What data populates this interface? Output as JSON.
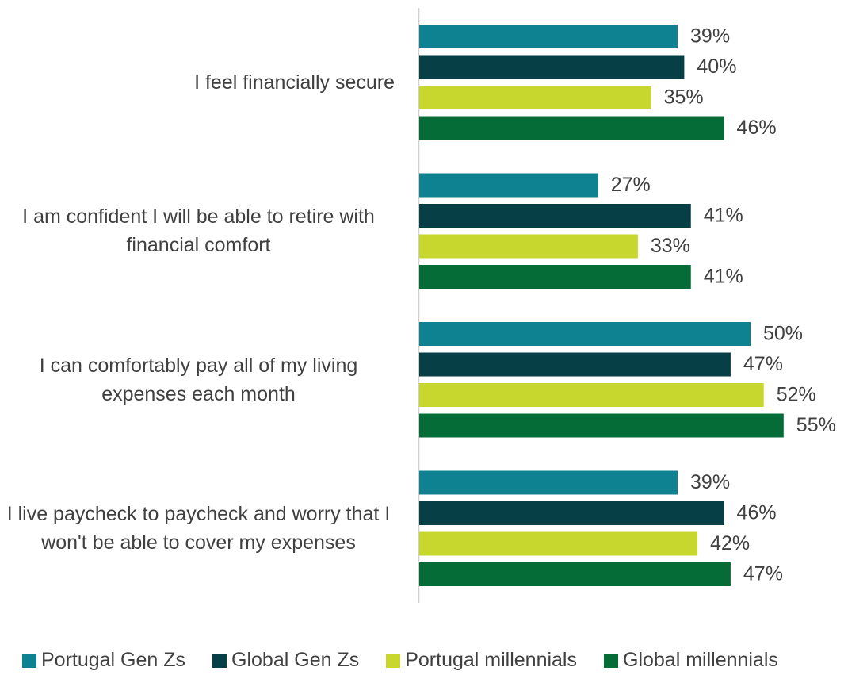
{
  "chart_data": {
    "type": "bar",
    "orientation": "horizontal",
    "categories": [
      "I feel financially secure",
      "I am confident I will be able to retire with financial comfort",
      "I can comfortably pay all of my living expenses each month",
      "I live paycheck to paycheck and worry that I won't be able to cover my expenses"
    ],
    "series": [
      {
        "name": "Portugal Gen Zs",
        "color": "#0e8290",
        "values": [
          39,
          27,
          50,
          39
        ],
        "value_labels": [
          "39%",
          "27%",
          "50%",
          "39%"
        ]
      },
      {
        "name": "Global Gen Zs",
        "color": "#073f47",
        "values": [
          40,
          41,
          47,
          46
        ],
        "value_labels": [
          "40%",
          "41%",
          "47%",
          "46%"
        ]
      },
      {
        "name": "Portugal millennials",
        "color": "#c8d72d",
        "values": [
          35,
          33,
          52,
          42
        ],
        "value_labels": [
          "35%",
          "33%",
          "52%",
          "42%"
        ]
      },
      {
        "name": "Global millennials",
        "color": "#056c38",
        "values": [
          46,
          41,
          55,
          47
        ],
        "value_labels": [
          "46%",
          "41%",
          "55%",
          "47%"
        ]
      }
    ],
    "legend": "bottom"
  }
}
